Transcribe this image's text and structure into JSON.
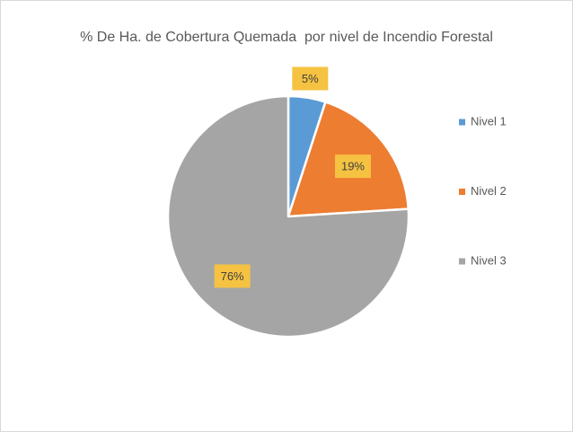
{
  "chart_data": {
    "type": "pie",
    "title": "% De Ha. de Cobertura Quemada  por nivel de Incendio Forestal",
    "categories": [
      "Nivel 1",
      "Nivel 2",
      "Nivel 3"
    ],
    "values": [
      5,
      19,
      76
    ],
    "value_labels": [
      "5%",
      "19%",
      "76%"
    ],
    "colors": [
      "#5b9bd5",
      "#ed7d31",
      "#a5a5a5"
    ],
    "legend": "right"
  }
}
